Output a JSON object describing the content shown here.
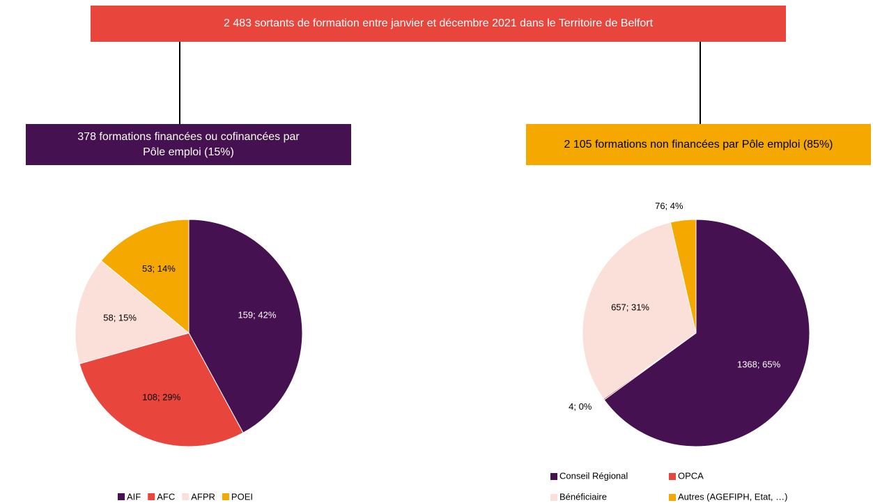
{
  "title": "2 483 sortants de formation entre janvier et décembre 2021 dans le Territoire de Belfort",
  "chart_data": [
    {
      "type": "pie",
      "title": "378 formations financées ou cofinancées par Pôle emploi (15%)",
      "categories": [
        "AIF",
        "AFC",
        "AFPR",
        "POEI"
      ],
      "values": [
        159,
        108,
        58,
        53
      ],
      "value_labels": [
        "159; 42%",
        "108; 29%",
        "58; 15%",
        "53; 14%"
      ],
      "colors": [
        "#461150",
        "#e8453c",
        "#fbe0d9",
        "#f5a800"
      ]
    },
    {
      "type": "pie",
      "title": "2 105 formations non financées par Pôle emploi (85%)",
      "categories": [
        "Conseil Régional",
        "OPCA",
        "Bénéficiaire",
        "Autres (AGEFIPH, Etat, …)"
      ],
      "values": [
        1368,
        4,
        657,
        76
      ],
      "value_labels": [
        "1368; 65%",
        "4; 0%",
        "657; 31%",
        "76; 4%"
      ],
      "colors": [
        "#461150",
        "#e8453c",
        "#fbe0d9",
        "#f5a800"
      ]
    }
  ]
}
